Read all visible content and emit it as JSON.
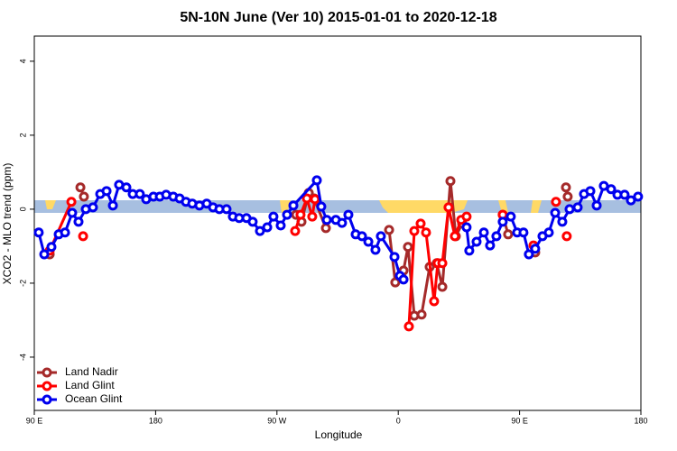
{
  "chart_data": {
    "type": "line",
    "title": "5N-10N June (Ver 10)   2015-01-01 to 2020-12-18",
    "xlabel": "Longitude",
    "ylabel": "XCO2 - MLO trend (ppm)",
    "xlim": [
      90,
      540
    ],
    "ylim": [
      -5.44,
      4.68
    ],
    "xticks": [
      {
        "value": 90,
        "label": "90 E"
      },
      {
        "value": 180,
        "label": "180"
      },
      {
        "value": 270,
        "label": "90 W"
      },
      {
        "value": 360,
        "label": "0"
      },
      {
        "value": 450,
        "label": "90 E"
      },
      {
        "value": 540,
        "label": "180"
      }
    ],
    "yticks": [
      -4,
      -2,
      0,
      2,
      4
    ],
    "legend": "bottom-left",
    "series": [
      {
        "name": "Land Nadir",
        "color": "#a52a2a",
        "x": [
          101.4,
          null,
          124.2,
          126.8,
          null,
          284.2,
          288.2,
          293.6,
          297.6,
          306.3,
          null,
          353.2,
          357.8,
          363.9,
          367.2,
          371.9,
          377.3,
          383.3,
          388.6,
          392.7,
          398.7,
          402.7,
          407.4,
          null,
          437.5,
          441.5,
          null,
          461.6,
          null,
          484.4,
          485.7
        ],
        "values": [
          -1.22,
          null,
          0.59,
          0.34,
          null,
          -0.15,
          -0.34,
          0.44,
          0.29,
          -0.51,
          null,
          -0.56,
          -1.98,
          -1.66,
          -1.02,
          -2.88,
          -2.85,
          -1.56,
          -1.46,
          -2.1,
          0.76,
          -0.73,
          -0.39,
          null,
          -0.15,
          -0.68,
          null,
          -1.17,
          null,
          0.59,
          0.34
        ]
      },
      {
        "name": "Land Glint",
        "color": "#ff0000",
        "x": [
          101.4,
          117.5,
          null,
          126.2,
          null,
          283.5,
          287.5,
          292.2,
          296.2,
          298.2,
          null,
          367.9,
          371.9,
          376.6,
          380.6,
          386.6,
          389.3,
          392.7,
          397.3,
          402.0,
          406.7,
          410.7,
          null,
          437.5,
          null,
          460.3,
          null,
          477.0,
          null,
          485.0
        ],
        "values": [
          -1.12,
          0.2,
          null,
          -0.73,
          null,
          -0.59,
          -0.15,
          0.29,
          -0.2,
          0.27,
          null,
          -3.17,
          -0.59,
          -0.39,
          -0.63,
          -2.49,
          -1.46,
          -1.46,
          0.05,
          -0.73,
          -0.29,
          -0.2,
          null,
          -0.15,
          null,
          -0.98,
          null,
          0.2,
          null,
          -0.73
        ]
      },
      {
        "name": "Ocean Glint",
        "color": "#0000ee",
        "x": [
          93.3,
          97.4,
          102.7,
          108.1,
          112.8,
          118.1,
          122.8,
          128.2,
          133.5,
          138.9,
          143.6,
          148.3,
          152.9,
          158.3,
          163.0,
          168.3,
          173.0,
          178.4,
          183.1,
          187.8,
          193.1,
          197.8,
          202.5,
          207.2,
          212.5,
          217.9,
          222.6,
          227.3,
          232.6,
          237.3,
          242.0,
          247.4,
          252.0,
          257.4,
          262.8,
          267.4,
          272.8,
          277.5,
          282.2,
          299.6,
          302.9,
          307.0,
          313.7,
          318.3,
          323.0,
          328.4,
          333.1,
          337.8,
          343.1,
          347.1,
          357.2,
          361.2,
          363.9,
          null,
          410.7,
          412.7,
          418.1,
          423.5,
          428.1,
          432.8,
          437.5,
          443.5,
          448.2,
          452.9,
          456.9,
          461.6,
          467.0,
          471.7,
          476.4,
          481.7,
          487.1,
          493.1,
          497.8,
          502.5,
          507.2,
          512.5,
          517.9,
          522.6,
          527.9,
          532.6,
          537.9
        ],
        "values": [
          -0.63,
          -1.22,
          -1.02,
          -0.68,
          -0.63,
          -0.1,
          -0.34,
          0,
          0.05,
          0.41,
          0.49,
          0.1,
          0.66,
          0.59,
          0.41,
          0.41,
          0.27,
          0.34,
          0.34,
          0.39,
          0.34,
          0.29,
          0.2,
          0.15,
          0.1,
          0.15,
          0.05,
          0,
          0,
          -0.2,
          -0.24,
          -0.24,
          -0.34,
          -0.59,
          -0.49,
          -0.2,
          -0.44,
          -0.15,
          0.1,
          0.78,
          0.07,
          -0.29,
          -0.29,
          -0.37,
          -0.15,
          -0.68,
          -0.73,
          -0.88,
          -1.1,
          -0.73,
          -1.29,
          -1.8,
          -1.9,
          null,
          -0.49,
          -1.12,
          -0.88,
          -0.63,
          -0.98,
          -0.73,
          -0.34,
          -0.2,
          -0.63,
          -0.63,
          -1.22,
          -1.07,
          -0.73,
          -0.63,
          -0.1,
          -0.34,
          0,
          0.05,
          0.41,
          0.49,
          0.1,
          0.63,
          0.54,
          0.39,
          0.39,
          0.24,
          0.34
        ]
      }
    ]
  }
}
